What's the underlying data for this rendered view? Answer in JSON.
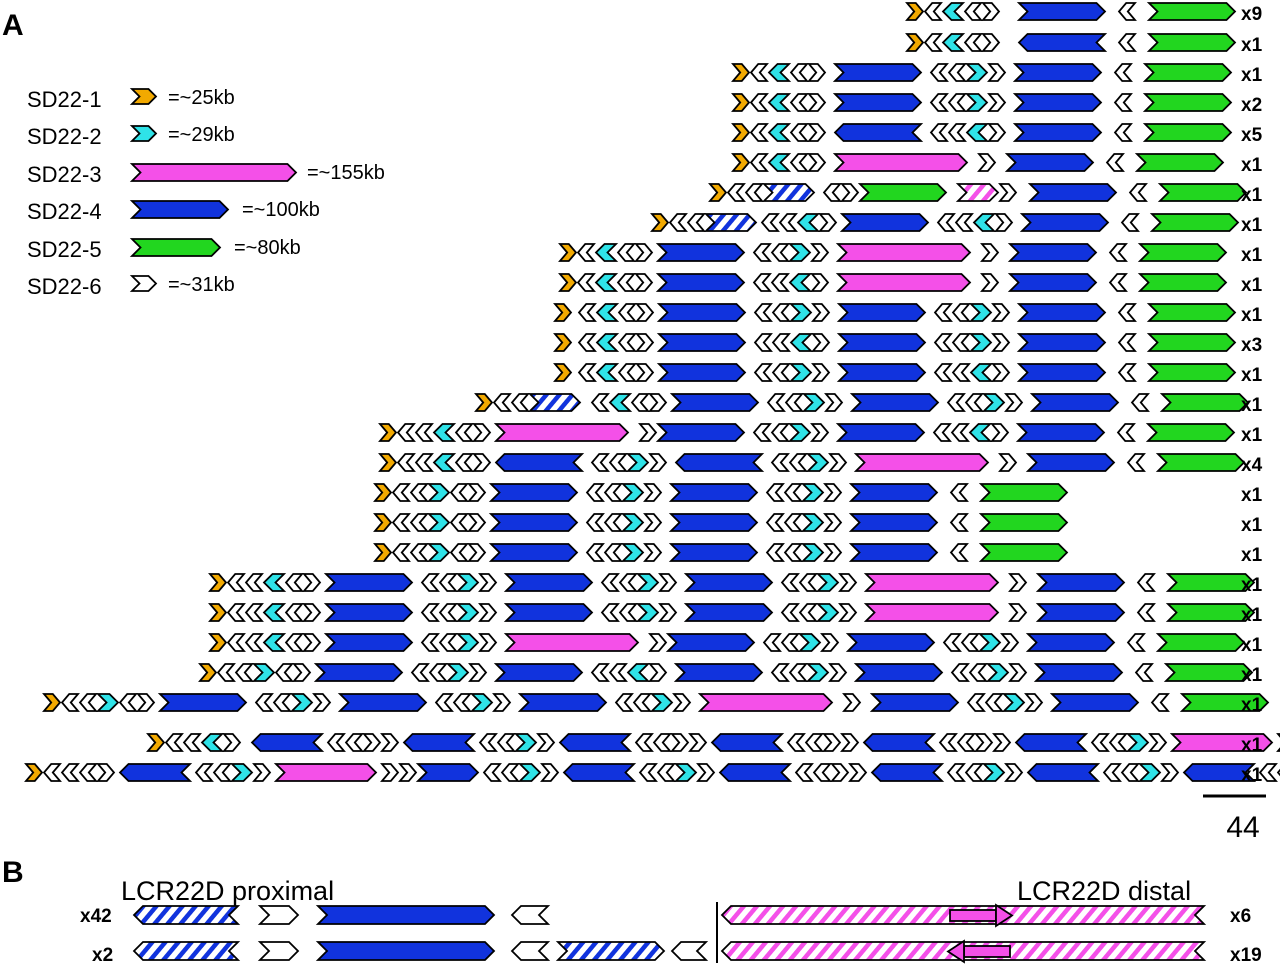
{
  "panel_labels": [
    "A",
    "B"
  ],
  "colors": {
    "SD22-1": "#f2a900",
    "SD22-2": "#2fe3e8",
    "SD22-3": "#f450e8",
    "SD22-4": "#1133dd",
    "SD22-5": "#22d61f",
    "SD22-6": "#ffffff",
    "outline": "#000000"
  },
  "legend": [
    {
      "id": "SD22-1",
      "label": "SD22-1",
      "size": "=~25kb"
    },
    {
      "id": "SD22-2",
      "label": "SD22-2",
      "size": "=~29kb"
    },
    {
      "id": "SD22-3",
      "label": "SD22-3",
      "size": "=~155kb"
    },
    {
      "id": "SD22-4",
      "label": "SD22-4",
      "size": "=~100kb"
    },
    {
      "id": "SD22-5",
      "label": "SD22-5",
      "size": "=~80kb"
    },
    {
      "id": "SD22-6",
      "label": "SD22-6",
      "size": "=~31kb"
    }
  ],
  "haplotypes": {
    "counts": [
      "x9",
      "x1",
      "x1",
      "x2",
      "x5",
      "x1",
      "x1",
      "x1",
      "x1",
      "x1",
      "x1",
      "x3",
      "x1",
      "x1",
      "x1",
      "x4",
      "x1",
      "x1",
      "x1",
      "x1",
      "x1",
      "x1",
      "x1",
      "x1",
      "x1",
      "x1"
    ]
  },
  "scale_bar": {
    "label": "44"
  },
  "panel_b": {
    "proximal_label": "LCR22D proximal",
    "distal_label": "LCR22D distal",
    "proximal_counts": [
      "x42",
      "x2"
    ],
    "distal_counts": [
      "x6",
      "x19"
    ]
  }
}
